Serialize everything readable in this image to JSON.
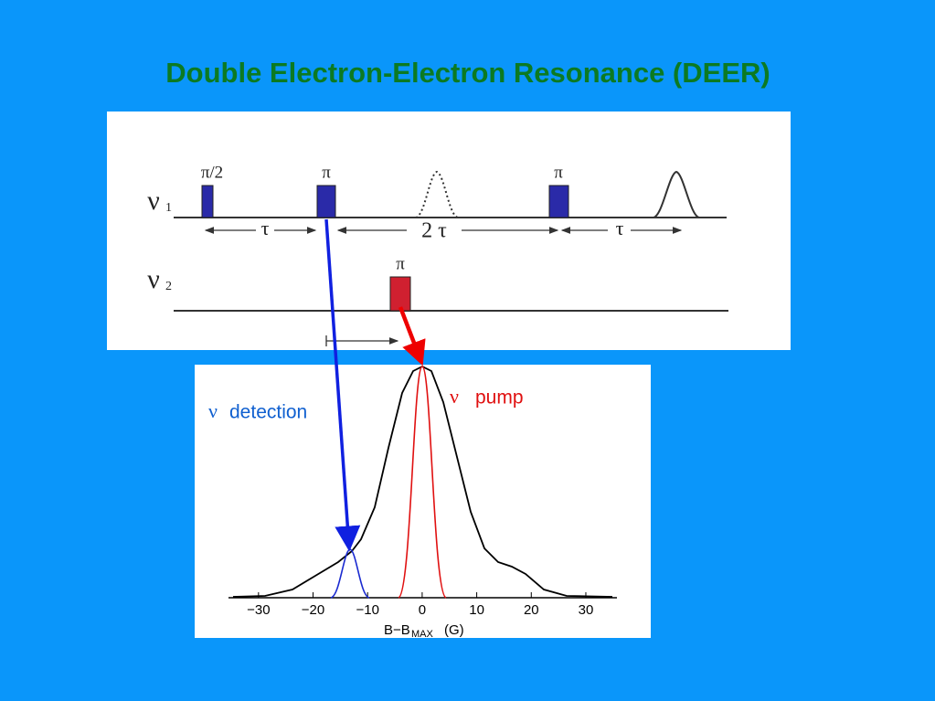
{
  "title": "Double Electron-Electron Resonance (DEER)",
  "pulse_sequence": {
    "channel_1": {
      "symbol": "ν",
      "sub": "1"
    },
    "channel_2": {
      "symbol": "ν",
      "sub": "2"
    },
    "pulse_labels": [
      "π/2",
      "π",
      "π"
    ],
    "pump_label": "π",
    "delays": [
      "τ",
      "2 τ",
      "τ"
    ]
  },
  "spectrum": {
    "detection": {
      "symbol": "ν",
      "text": "detection"
    },
    "pump": {
      "symbol": "ν",
      "text": "pump"
    },
    "xlim": [
      -35.5,
      35.7
    ],
    "xticks": [
      {
        "value": -30,
        "label": "−30"
      },
      {
        "value": -20,
        "label": "−20"
      },
      {
        "value": -10,
        "label": "−10"
      },
      0,
      10,
      20,
      30
    ],
    "xlabel": {
      "main": "B−B",
      "sub": "MAX",
      "unit": "(G)"
    }
  }
}
